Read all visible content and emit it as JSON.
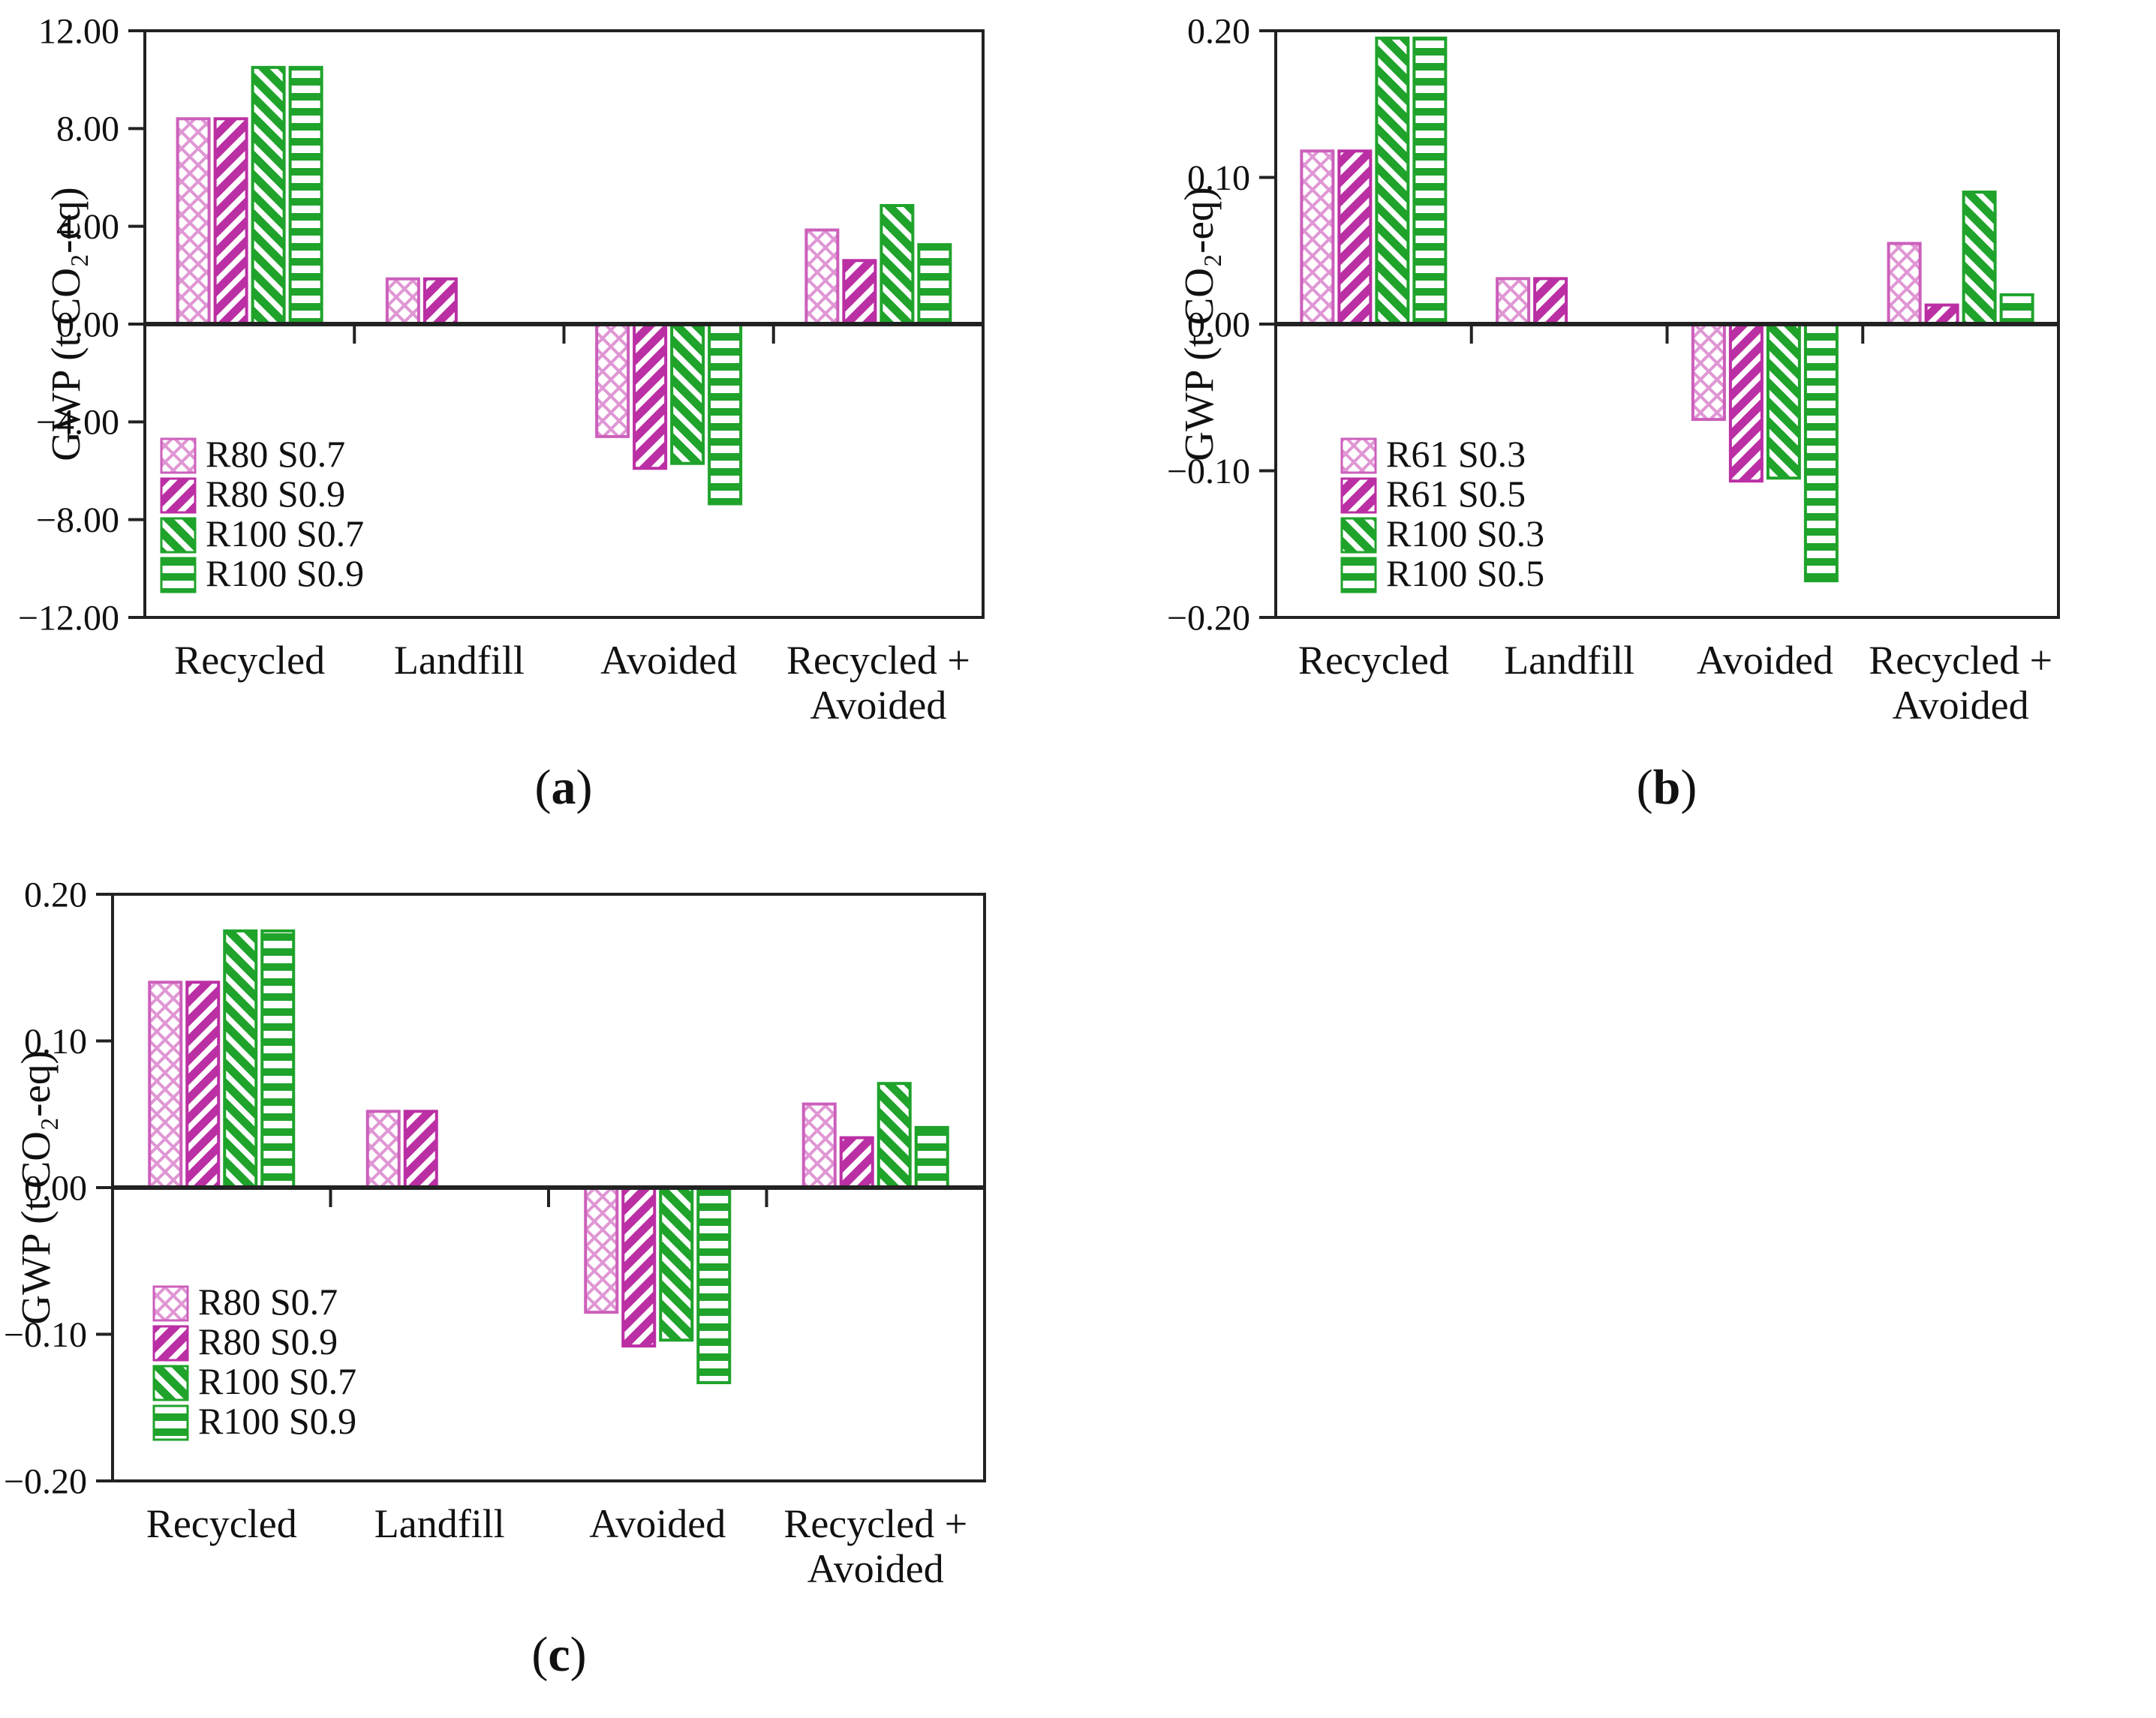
{
  "colors": {
    "magenta": "#BB2FA4",
    "magenta_light": "#E096D4",
    "magenta_border": "#CC5FBB",
    "green": "#1FA32B",
    "axis": "#222222",
    "text": "#111111"
  },
  "chart_data": [
    {
      "id": "a",
      "type": "bar",
      "ylabel": "GWP (t CO₂-eq)",
      "ylim": [
        -12,
        12
      ],
      "grid": false,
      "legend_position": "inside-lower-left",
      "yticks": [
        {
          "label": "12.00",
          "value": 12
        },
        {
          "label": "8.00",
          "value": 8
        },
        {
          "label": "4.00",
          "value": 4
        },
        {
          "label": "0.00",
          "value": 0
        },
        {
          "label": "−4.00",
          "value": -4
        },
        {
          "label": "−8.00",
          "value": -8
        },
        {
          "label": "−12.00",
          "value": -12
        }
      ],
      "categories": [
        {
          "lines": [
            "Recycled"
          ]
        },
        {
          "lines": [
            "Landfill"
          ]
        },
        {
          "lines": [
            "Avoided"
          ]
        },
        {
          "lines": [
            "Recycled +",
            "Avoided"
          ]
        }
      ],
      "series": [
        {
          "name": "R80 S0.7",
          "pattern": "cross",
          "color": "magenta",
          "values": [
            8.4,
            1.85,
            -4.6,
            3.85
          ]
        },
        {
          "name": "R80 S0.9",
          "pattern": "diag-up",
          "color": "magenta",
          "values": [
            8.4,
            1.85,
            -5.9,
            2.6
          ]
        },
        {
          "name": "R100 S0.7",
          "pattern": "diag-down",
          "color": "green",
          "values": [
            10.5,
            0,
            -5.7,
            4.85
          ]
        },
        {
          "name": "R100 S0.9",
          "pattern": "horiz",
          "color": "green",
          "values": [
            10.5,
            0,
            -7.35,
            3.25
          ]
        }
      ],
      "caption": {
        "open": "(",
        "letter": "a",
        "close": ")"
      }
    },
    {
      "id": "b",
      "type": "bar",
      "ylabel": "GWP (t CO₂-eq)",
      "ylim": [
        -0.2,
        0.2
      ],
      "grid": false,
      "legend_position": "inside-lower-left",
      "yticks": [
        {
          "label": "0.20",
          "value": 0.2
        },
        {
          "label": "0.10",
          "value": 0.1
        },
        {
          "label": "0.00",
          "value": 0
        },
        {
          "label": "−0.10",
          "value": -0.1
        },
        {
          "label": "−0.20",
          "value": -0.2
        }
      ],
      "categories": [
        {
          "lines": [
            "Recycled"
          ]
        },
        {
          "lines": [
            "Landfill"
          ]
        },
        {
          "lines": [
            "Avoided"
          ]
        },
        {
          "lines": [
            "Recycled +",
            "Avoided"
          ]
        }
      ],
      "series": [
        {
          "name": "R61 S0.3",
          "pattern": "cross",
          "color": "magenta",
          "values": [
            0.118,
            0.031,
            -0.065,
            0.055
          ]
        },
        {
          "name": "R61 S0.5",
          "pattern": "diag-up",
          "color": "magenta",
          "values": [
            0.118,
            0.031,
            -0.107,
            0.013
          ]
        },
        {
          "name": "R100 S0.3",
          "pattern": "diag-down",
          "color": "green",
          "values": [
            0.195,
            0,
            -0.105,
            0.09
          ]
        },
        {
          "name": "R100 S0.5",
          "pattern": "horiz",
          "color": "green",
          "values": [
            0.195,
            0,
            -0.175,
            0.02
          ]
        }
      ],
      "caption": {
        "open": "(",
        "letter": "b",
        "close": ")"
      }
    },
    {
      "id": "c",
      "type": "bar",
      "ylabel": "GWP (t CO₂-eq)",
      "ylim": [
        -0.2,
        0.2
      ],
      "grid": false,
      "legend_position": "inside-lower-left",
      "yticks": [
        {
          "label": "0.20",
          "value": 0.2
        },
        {
          "label": "0.10",
          "value": 0.1
        },
        {
          "label": "0.00",
          "value": 0
        },
        {
          "label": "−0.10",
          "value": -0.1
        },
        {
          "label": "−0.20",
          "value": -0.2
        }
      ],
      "categories": [
        {
          "lines": [
            "Recycled"
          ]
        },
        {
          "lines": [
            "Landfill"
          ]
        },
        {
          "lines": [
            "Avoided"
          ]
        },
        {
          "lines": [
            "Recycled +",
            "Avoided"
          ]
        }
      ],
      "series": [
        {
          "name": "R80 S0.7",
          "pattern": "cross",
          "color": "magenta",
          "values": [
            0.14,
            0.052,
            -0.085,
            0.057
          ]
        },
        {
          "name": "R80 S0.9",
          "pattern": "diag-up",
          "color": "magenta",
          "values": [
            0.14,
            0.052,
            -0.108,
            0.034
          ]
        },
        {
          "name": "R100 S0.7",
          "pattern": "diag-down",
          "color": "green",
          "values": [
            0.175,
            0,
            -0.104,
            0.071
          ]
        },
        {
          "name": "R100 S0.9",
          "pattern": "horiz",
          "color": "green",
          "values": [
            0.175,
            0,
            -0.133,
            0.041
          ]
        }
      ],
      "caption": {
        "open": "(",
        "letter": "c",
        "close": ")"
      }
    }
  ]
}
